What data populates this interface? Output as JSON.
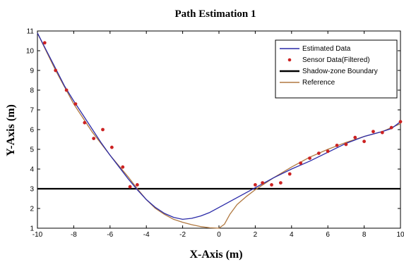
{
  "chart_data": {
    "type": "line",
    "title": "Path Estimation 1",
    "xlabel": "X-Axis (m)",
    "ylabel": "Y-Axis (m)",
    "xlim": [
      -10,
      10
    ],
    "ylim": [
      1,
      11
    ],
    "xticks": [
      "-10",
      "-8",
      "-6",
      "-4",
      "-2",
      "0",
      "2",
      "4",
      "6",
      "8",
      "10"
    ],
    "yticks": [
      "1",
      "2",
      "3",
      "4",
      "5",
      "6",
      "7",
      "8",
      "9",
      "10",
      "11"
    ],
    "grid": false,
    "legend_position": "top-right",
    "colors": {
      "estimated": "#2a2aa8",
      "sensor": "#cc2222",
      "boundary": "#000000",
      "reference": "#b07840"
    },
    "series": [
      {
        "name": "Estimated Data",
        "kind": "line",
        "x": [
          -10,
          -9.5,
          -9,
          -8.5,
          -8,
          -7.5,
          -7,
          -6.5,
          -6,
          -5.5,
          -5,
          -4.5,
          -4,
          -3.5,
          -3,
          -2.5,
          -2,
          -1.5,
          -1,
          -0.5,
          0,
          1,
          2,
          3,
          4,
          5,
          6,
          7,
          8,
          9,
          9.5,
          10
        ],
        "y": [
          10.9,
          10.0,
          9.1,
          8.2,
          7.45,
          6.75,
          6.05,
          5.35,
          4.7,
          4.1,
          3.5,
          2.95,
          2.45,
          2.05,
          1.75,
          1.55,
          1.45,
          1.5,
          1.62,
          1.8,
          2.05,
          2.55,
          3.05,
          3.55,
          4.0,
          4.4,
          4.85,
          5.3,
          5.65,
          5.9,
          6.05,
          6.4
        ]
      },
      {
        "name": "Sensor Data(Filtered)",
        "kind": "scatter",
        "x": [
          -9.6,
          -9.0,
          -8.4,
          -7.9,
          -7.4,
          -6.9,
          -6.4,
          -5.9,
          -5.3,
          -4.9,
          -4.5,
          2.0,
          2.4,
          2.9,
          3.4,
          3.9,
          4.5,
          5.0,
          5.5,
          6.0,
          6.5,
          7.0,
          7.5,
          8.0,
          8.5,
          9.0,
          9.5,
          10.0
        ],
        "y": [
          10.4,
          9.0,
          8.0,
          7.3,
          6.35,
          5.55,
          6.0,
          5.1,
          4.1,
          3.1,
          3.2,
          3.2,
          3.3,
          3.2,
          3.3,
          3.75,
          4.3,
          4.55,
          4.8,
          4.9,
          5.2,
          5.25,
          5.6,
          5.4,
          5.9,
          5.85,
          6.1,
          6.4
        ]
      },
      {
        "name": "Shadow-zone Boundary",
        "kind": "hline",
        "x": [
          -10,
          10
        ],
        "y": [
          3,
          3
        ]
      },
      {
        "name": "Reference",
        "kind": "line",
        "x": [
          -10,
          -9,
          -8,
          -7,
          -6,
          -5,
          -4.5,
          -4,
          -3.5,
          -3,
          -2.5,
          -2,
          -1.5,
          -1,
          -0.5,
          0,
          0.3,
          0.6,
          1,
          1.5,
          2,
          3,
          4,
          5,
          6,
          7,
          8,
          9,
          10
        ],
        "y": [
          10.9,
          9.0,
          7.3,
          5.9,
          4.7,
          3.6,
          3.0,
          2.45,
          2.0,
          1.7,
          1.45,
          1.3,
          1.18,
          1.08,
          1.02,
          1.0,
          1.2,
          1.7,
          2.2,
          2.6,
          2.95,
          3.55,
          4.1,
          4.6,
          5.0,
          5.35,
          5.65,
          5.9,
          6.3
        ]
      }
    ]
  }
}
